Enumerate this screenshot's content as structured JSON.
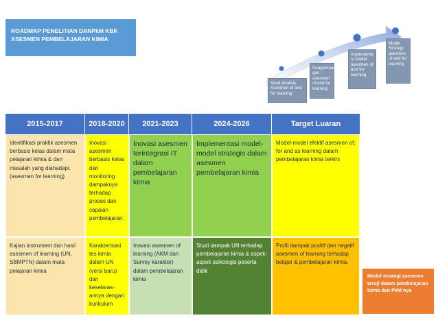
{
  "title": {
    "line1": "ROADMAP PENELITIAN DANPkM KBK",
    "line2": "ASESMEN PEMBELAJARAN KIMIA"
  },
  "steps": [
    "Studi Analisis Asesmen of and for learning",
    "Pengemban gan asesmen of and for learning",
    "Implementa si model asesmen of and for learning",
    "Model Strategi asesmen of and for learning"
  ],
  "headers": [
    "2015-2017",
    "2018-2020",
    "2021-2023",
    "2024-2026",
    "Target Luaran"
  ],
  "rows": [
    [
      "Identifikasi praktik asesmen berbasis kelas dalam mata pelajaran kimia & dan masalah yang diahadapi. (asesmen for learning)",
      "Inovasi asesmen berbasis kelas dan monitoring dampaknya terhadap proses dan capaian pembelajaran.",
      "Inovasi asesmen terintegrasi IT dalam pembelajaran kimia",
      "Implementasi model-model strategis dalam asesmen pembelajaran kimia",
      "Model-model efektif  asesmen of, for and as learning dalam pembelajaran kimia terkini"
    ],
    [
      "Kajian instrument dan  hasil asesmen of learning (UN, SBMPTN) dalam mata pelajaran kimia",
      "Karakterisasi tes kimia dalam UN (versi baru) dan keselaras-annya dengan kurikulum",
      "Inovasi asesmen of learning (AKM dan Survey karakter) dalam pembelajaran kimia",
      "Studi dampak UN terhadap pembelajaran kimia & aspek-aspek psikologis peserta didik",
      "Profil dampak positif dan negatif asesmen of learning terhadap belajar & pembelajaran kimia."
    ]
  ],
  "target_box": "Model strategi asesmen teruji dalam pembelajaran kimia dan PkM nya"
}
